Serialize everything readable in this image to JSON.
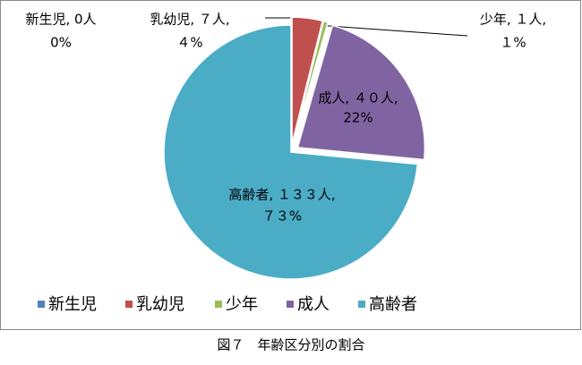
{
  "chart_data": {
    "type": "pie",
    "categories": [
      "新生児",
      "乳幼児",
      "少年",
      "成人",
      "高齢者"
    ],
    "values": [
      0,
      7,
      1,
      40,
      133
    ],
    "value_labels": [
      "新生児, 0人",
      "乳幼児, ７人,",
      "少年, １人,",
      "成人, ４０人,",
      "高齢者, １３３人,"
    ],
    "percents": [
      0,
      4,
      1,
      22,
      73
    ],
    "percent_labels": [
      "0%",
      "４%",
      "１%",
      "22%",
      "７３%"
    ],
    "colors": [
      "#4f81bd",
      "#c0504d",
      "#9bbb59",
      "#8064a2",
      "#4bacc6"
    ],
    "exploded": [
      true,
      true,
      true,
      true,
      false
    ],
    "legend": "bottom",
    "caption": "図７　年齢区分別の割合"
  }
}
